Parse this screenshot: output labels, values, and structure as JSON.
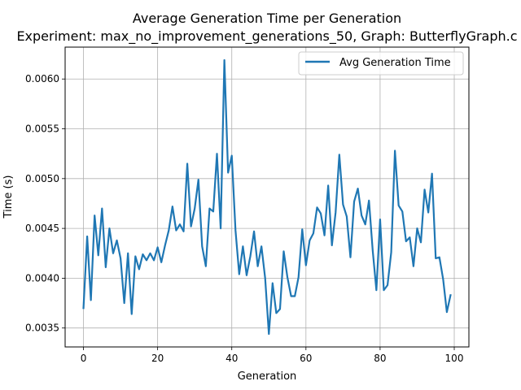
{
  "chart_data": {
    "type": "line",
    "title": "Average Generation Time per Generation",
    "subtitle": "Experiment: max_no_improvement_generations_50, Graph: ButterflyGraph.c",
    "xlabel": "Generation",
    "ylabel": "Time (s)",
    "xlim": [
      -4.95,
      103.95
    ],
    "ylim": [
      0.00331,
      0.00632
    ],
    "x_ticks": [
      0,
      20,
      40,
      60,
      80,
      100
    ],
    "y_ticks": [
      0.0035,
      0.004,
      0.0045,
      0.005,
      0.0055,
      0.006
    ],
    "x_tick_labels": [
      "0",
      "20",
      "40",
      "60",
      "80",
      "100"
    ],
    "y_tick_labels": [
      "0.0035",
      "0.0040",
      "0.0045",
      "0.0050",
      "0.0055",
      "0.0060"
    ],
    "grid": true,
    "legend_position": "top-right",
    "line_color": "#1f77b4",
    "series": [
      {
        "name": "Avg Generation Time",
        "x": [
          0,
          1,
          2,
          3,
          4,
          5,
          6,
          7,
          8,
          9,
          10,
          11,
          12,
          13,
          14,
          15,
          16,
          17,
          18,
          19,
          20,
          21,
          22,
          23,
          24,
          25,
          26,
          27,
          28,
          29,
          30,
          31,
          32,
          33,
          34,
          35,
          36,
          37,
          38,
          39,
          40,
          41,
          42,
          43,
          44,
          45,
          46,
          47,
          48,
          49,
          50,
          51,
          52,
          53,
          54,
          55,
          56,
          57,
          58,
          59,
          60,
          61,
          62,
          63,
          64,
          65,
          66,
          67,
          68,
          69,
          70,
          71,
          72,
          73,
          74,
          75,
          76,
          77,
          78,
          79,
          80,
          81,
          82,
          83,
          84,
          85,
          86,
          87,
          88,
          89,
          90,
          91,
          92,
          93,
          94,
          95,
          96,
          97,
          98,
          99
        ],
        "values": [
          0.0037,
          0.00442,
          0.00378,
          0.00463,
          0.00423,
          0.0047,
          0.00411,
          0.0045,
          0.00425,
          0.00438,
          0.0042,
          0.00375,
          0.00425,
          0.00364,
          0.00422,
          0.00409,
          0.00424,
          0.00418,
          0.00425,
          0.00418,
          0.00431,
          0.00416,
          0.00433,
          0.00448,
          0.00472,
          0.00448,
          0.00454,
          0.00447,
          0.00515,
          0.00452,
          0.0047,
          0.00499,
          0.00432,
          0.00412,
          0.0047,
          0.00467,
          0.00525,
          0.0045,
          0.00619,
          0.00506,
          0.00523,
          0.00448,
          0.00404,
          0.00432,
          0.00403,
          0.00422,
          0.00447,
          0.00412,
          0.00432,
          0.004,
          0.00344,
          0.00395,
          0.00365,
          0.00369,
          0.00427,
          0.00401,
          0.00382,
          0.00382,
          0.00401,
          0.00449,
          0.00413,
          0.00438,
          0.00445,
          0.00471,
          0.00465,
          0.00443,
          0.00493,
          0.00433,
          0.00466,
          0.00524,
          0.00474,
          0.00462,
          0.00421,
          0.00477,
          0.0049,
          0.00463,
          0.00454,
          0.00478,
          0.00428,
          0.00388,
          0.00459,
          0.00388,
          0.00393,
          0.00426,
          0.00528,
          0.00473,
          0.00467,
          0.00437,
          0.00441,
          0.00412,
          0.0045,
          0.00436,
          0.00489,
          0.00466,
          0.00505,
          0.0042,
          0.00421,
          0.00399,
          0.00366,
          0.00383
        ]
      }
    ]
  }
}
